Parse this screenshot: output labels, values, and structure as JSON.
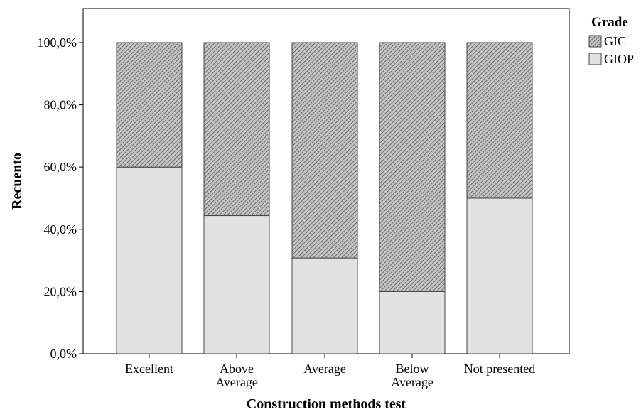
{
  "chart_data": {
    "type": "bar",
    "stacked": true,
    "xlabel": "Construction methods test",
    "ylabel": "Recuento",
    "ylim": [
      0,
      100
    ],
    "yticks": [
      "0,0%",
      "20,0%",
      "40,0%",
      "60,0%",
      "80,0%",
      "100,0%"
    ],
    "categories": [
      [
        "Excellent"
      ],
      [
        "Above",
        "Average"
      ],
      [
        "Average"
      ],
      [
        "Below",
        "Average"
      ],
      [
        "Not presented"
      ]
    ],
    "series": [
      {
        "name": "GIOP",
        "values": [
          60,
          44.4,
          30.8,
          20,
          50
        ],
        "fill": "#e2e2e2",
        "pattern": "solid"
      },
      {
        "name": "GIC",
        "values": [
          40,
          55.6,
          69.2,
          80,
          50
        ],
        "fill": "#9a9a9a",
        "pattern": "hatched"
      }
    ],
    "legend": {
      "title": "Grade",
      "placement": "right",
      "order": [
        "GIC",
        "GIOP"
      ]
    },
    "grid": false
  }
}
